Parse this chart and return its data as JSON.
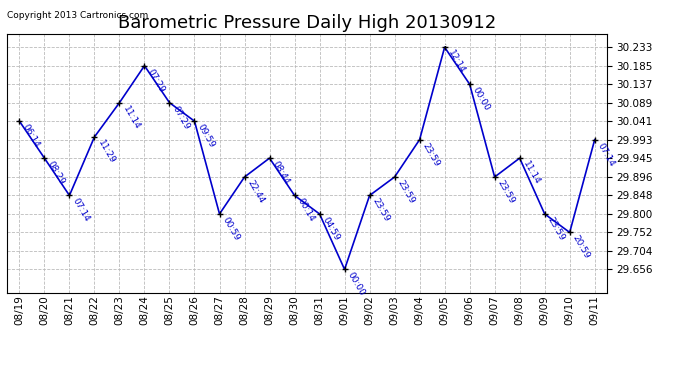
{
  "title": "Barometric Pressure Daily High 20130912",
  "copyright": "Copyright 2013 Cartronics.com",
  "x_labels": [
    "08/19",
    "08/20",
    "08/21",
    "08/22",
    "08/23",
    "08/24",
    "08/25",
    "08/26",
    "08/27",
    "08/28",
    "08/29",
    "08/30",
    "08/31",
    "09/01",
    "09/02",
    "09/03",
    "09/04",
    "09/05",
    "09/06",
    "09/07",
    "09/08",
    "09/09",
    "09/10",
    "09/11"
  ],
  "y_values": [
    30.041,
    29.945,
    29.848,
    30.0,
    30.089,
    30.185,
    30.089,
    30.041,
    29.8,
    29.896,
    29.945,
    29.848,
    29.8,
    29.656,
    29.848,
    29.896,
    29.993,
    30.233,
    30.137,
    29.896,
    29.945,
    29.8,
    29.752,
    29.993
  ],
  "time_labels": [
    "06:14",
    "08:29",
    "07:14",
    "11:29",
    "11:14",
    "07:29",
    "07:29",
    "09:59",
    "00:59",
    "22:44",
    "08:44",
    "00:14",
    "04:59",
    "00:00",
    "23:59",
    "23:59",
    "23:59",
    "12:14",
    "00:00",
    "23:59",
    "11:14",
    "23:59",
    "20:59",
    "07:14"
  ],
  "ylim": [
    29.596,
    30.268
  ],
  "yticks": [
    29.656,
    29.704,
    29.752,
    29.8,
    29.848,
    29.896,
    29.945,
    29.993,
    30.041,
    30.089,
    30.137,
    30.185,
    30.233
  ],
  "line_color": "#0000cc",
  "marker_color": "#000000",
  "bg_color": "#ffffff",
  "grid_color": "#bbbbbb",
  "title_fontsize": 13,
  "label_fontsize": 6.5,
  "axis_fontsize": 7.5,
  "legend_bg": "#0000cc",
  "legend_text_color": "#ffffff"
}
